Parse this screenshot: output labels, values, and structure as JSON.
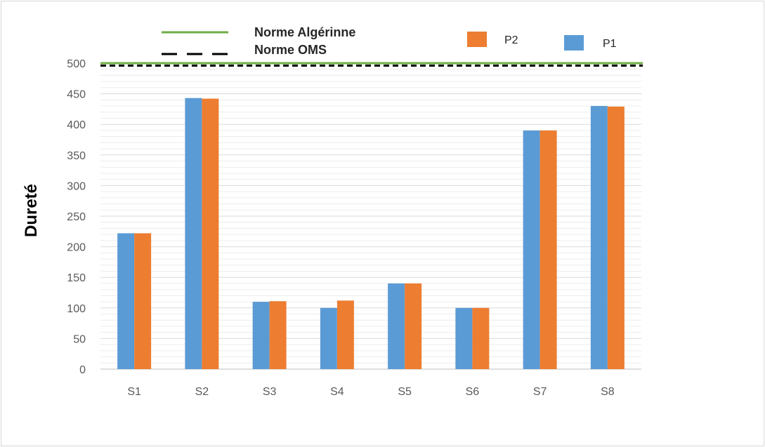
{
  "chart_data": {
    "type": "bar",
    "categories": [
      "S1",
      "S2",
      "S3",
      "S4",
      "S5",
      "S6",
      "S7",
      "S8"
    ],
    "series": [
      {
        "name": "P1",
        "values": [
          222,
          443,
          110,
          100,
          140,
          100,
          390,
          430
        ],
        "color": "#5b9bd5"
      },
      {
        "name": "P2",
        "values": [
          222,
          442,
          111,
          112,
          140,
          100,
          390,
          429
        ],
        "color": "#ed7d31"
      }
    ],
    "reference_lines": [
      {
        "name": "Norme Algérinne",
        "value": 500,
        "color": "#70ad47",
        "style": "solid"
      },
      {
        "name": "Norme OMS",
        "value": 496,
        "color": "#000000",
        "style": "dashed"
      }
    ],
    "title": "",
    "xlabel": "",
    "ylabel": "Dureté",
    "ylim": [
      0,
      500
    ],
    "yticks": [
      0,
      50,
      100,
      150,
      200,
      250,
      300,
      350,
      400,
      450,
      500
    ],
    "grid": true,
    "legend_position": "top"
  }
}
